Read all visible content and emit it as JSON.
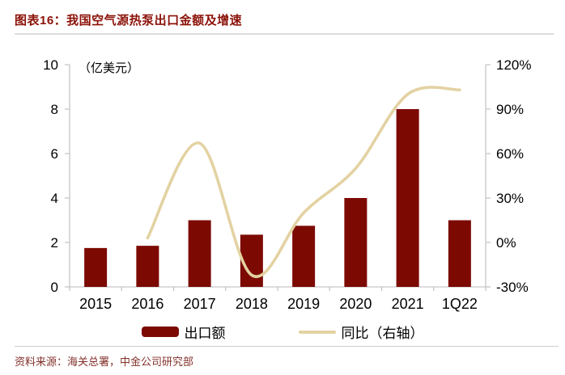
{
  "chart_data": {
    "type": "bar+line dual-axis combo",
    "title": "图表16：我国空气源热泵出口金额及增速",
    "categories": [
      "2015",
      "2016",
      "2017",
      "2018",
      "2019",
      "2020",
      "2021",
      "1Q22"
    ],
    "series": [
      {
        "name": "出口额",
        "type": "bar",
        "axis": "left",
        "color": "#7c0a03",
        "values": [
          1.75,
          1.85,
          3.0,
          2.35,
          2.75,
          4.0,
          8.0,
          3.0
        ]
      },
      {
        "name": "同比（右轴）",
        "type": "line",
        "axis": "right",
        "color": "#e3d2a2",
        "smooth": true,
        "values": [
          null,
          3,
          67,
          -22,
          20,
          50,
          100,
          103
        ]
      }
    ],
    "left_axis": {
      "unit_label": "（亿美元）",
      "min": 0,
      "max": 10,
      "step": 2,
      "tick_labels": [
        "0",
        "2",
        "4",
        "6",
        "8",
        "10"
      ]
    },
    "right_axis": {
      "min": -30,
      "max": 120,
      "step": 30,
      "tick_labels": [
        "-30%",
        "0%",
        "30%",
        "60%",
        "90%",
        "120%"
      ]
    },
    "grid": false,
    "legend_position": "bottom"
  },
  "footer": {
    "source": "资料来源：海关总署，中金公司研究部"
  },
  "colors": {
    "bar_dark_red": "#7c0a03",
    "title_red": "#8c1209",
    "line_tan": "#e3d2a2",
    "axis_gray": "#c6c6c6",
    "tick_text": "#000000",
    "source_red": "#82302a"
  }
}
